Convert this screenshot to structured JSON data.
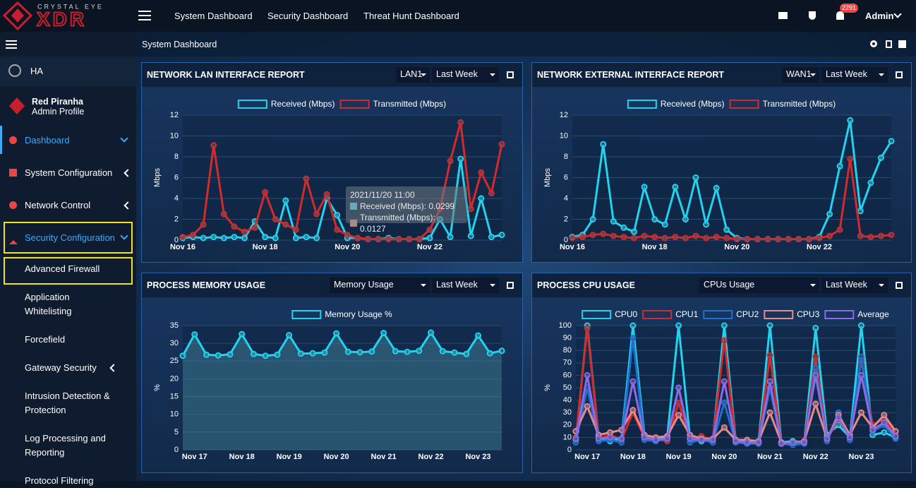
{
  "header": {
    "logo_top": "CRYSTAL EYE",
    "logo_main": "XDR",
    "nav": [
      "System Dashboard",
      "Security Dashboard",
      "Threat Hunt Dashboard"
    ],
    "notification_count": 2291,
    "user": "Admin"
  },
  "sidebar": {
    "ha": "HA",
    "profile_name": "Red Piranha",
    "profile_role": "Admin Profile",
    "menu": [
      "Dashboard",
      "System Configuration",
      "Network Control",
      "Security Configuration"
    ],
    "submenu": [
      "Advanced Firewall",
      "Application Whitelisting",
      "Forcefield",
      "Gateway Security",
      "Intrusion Detection & Protection",
      "Log Processing and Reporting",
      "Protocol Filtering"
    ]
  },
  "page_title": "System Dashboard",
  "panel_controls": [
    [
      "LAN1",
      "Last Week"
    ],
    [
      "WAN1",
      "Last Week"
    ],
    [
      "Memory Usage",
      "Last Week"
    ],
    [
      "CPUs Usage",
      "Last Week"
    ]
  ],
  "tooltip": {
    "time": "2021/11/20 11:00",
    "lines": [
      "Received (Mbps): 0.0299",
      "Transmitted (Mbps): 0.0127"
    ]
  },
  "chart_data": [
    {
      "type": "line",
      "title": "NETWORK LAN INTERFACE REPORT",
      "ylabel": "Mbps",
      "categories": [
        "Nov 16",
        null,
        null,
        null,
        null,
        null,
        null,
        null,
        "Nov 18",
        null,
        null,
        null,
        null,
        null,
        null,
        null,
        "Nov 20",
        null,
        null,
        null,
        null,
        null,
        null,
        null,
        "Nov 22",
        null,
        null,
        null,
        null,
        null,
        null,
        null
      ],
      "series": [
        {
          "name": "Received (Mbps)",
          "color": "#22d3ee",
          "values": [
            0.2,
            0.3,
            0.2,
            0.3,
            0.2,
            0.3,
            0.2,
            1.8,
            0.3,
            0.2,
            3.8,
            0.2,
            0.3,
            0.2,
            4.0,
            2.4,
            0.2,
            0.2,
            0.1,
            0.1,
            0.2,
            0.1,
            0.1,
            0.1,
            0.2,
            2.0,
            0.3,
            7.8,
            0.4,
            4.0,
            0.3,
            0.5
          ]
        },
        {
          "name": "Transmitted (Mbps)",
          "color": "#d42a2a",
          "values": [
            0.3,
            0.5,
            1.5,
            9.1,
            2.5,
            1.3,
            0.8,
            1.2,
            4.6,
            2.0,
            1.5,
            1.0,
            5.9,
            2.5,
            4.4,
            1.0,
            0.5,
            0.2,
            0.1,
            0.1,
            0.1,
            0.1,
            0.1,
            0.1,
            1.0,
            3.0,
            7.6,
            11.3,
            3.0,
            6.5,
            4.5,
            9.2
          ]
        }
      ],
      "ylim": [
        0,
        12
      ],
      "yticks": [
        0,
        2,
        4,
        6,
        8,
        10,
        12
      ],
      "grid": true,
      "legend": "top"
    },
    {
      "type": "line",
      "title": "NETWORK EXTERNAL INTERFACE REPORT",
      "ylabel": "Mbps",
      "categories": [
        "Nov 16",
        null,
        null,
        null,
        null,
        null,
        null,
        null,
        "Nov 18",
        null,
        null,
        null,
        null,
        null,
        null,
        null,
        "Nov 20",
        null,
        null,
        null,
        null,
        null,
        null,
        null,
        "Nov 22",
        null,
        null,
        null,
        null,
        null,
        null,
        null
      ],
      "series": [
        {
          "name": "Received (Mbps)",
          "color": "#22d3ee",
          "values": [
            0.3,
            0.5,
            2.0,
            9.2,
            1.8,
            1.2,
            0.8,
            5.1,
            2.0,
            1.5,
            5.1,
            2.0,
            6.0,
            1.5,
            5.0,
            1.0,
            0.2,
            0.1,
            0.1,
            0.1,
            0.1,
            0.1,
            0.1,
            0.1,
            0.3,
            2.5,
            7.1,
            11.5,
            2.8,
            5.5,
            7.9,
            9.5
          ]
        },
        {
          "name": "Transmitted (Mbps)",
          "color": "#d42a2a",
          "values": [
            0.2,
            0.3,
            0.5,
            0.6,
            0.4,
            0.3,
            0.2,
            0.4,
            0.3,
            0.2,
            0.3,
            0.2,
            0.4,
            0.2,
            0.3,
            0.2,
            0.1,
            0.1,
            0.1,
            0.1,
            0.1,
            0.1,
            0.1,
            0.1,
            0.2,
            0.4,
            1.0,
            7.8,
            0.4,
            0.3,
            0.4,
            0.5
          ]
        }
      ],
      "ylim": [
        0,
        12
      ],
      "yticks": [
        0,
        2,
        4,
        6,
        8,
        10,
        12
      ],
      "grid": true,
      "legend": "top"
    },
    {
      "type": "area",
      "title": "PROCESS MEMORY USAGE",
      "ylabel": "%",
      "categories": [
        null,
        "Nov 17",
        null,
        null,
        null,
        "Nov 18",
        null,
        null,
        null,
        "Nov 19",
        null,
        null,
        null,
        "Nov 20",
        null,
        null,
        null,
        "Nov 21",
        null,
        null,
        null,
        "Nov 22",
        null,
        null,
        null,
        "Nov 23",
        null,
        null
      ],
      "series": [
        {
          "name": "Memory Usage %",
          "color": "#22d3ee",
          "values": [
            26.5,
            32.5,
            26.8,
            26.6,
            26.9,
            32.6,
            27.0,
            26.5,
            26.8,
            32.3,
            27.1,
            27.2,
            27.4,
            32.8,
            27.6,
            27.5,
            27.7,
            32.9,
            27.8,
            27.6,
            27.9,
            33.0,
            27.8,
            27.4,
            27.0,
            32.2,
            27.2,
            27.9
          ]
        }
      ],
      "ylim": [
        0,
        35
      ],
      "yticks": [
        0,
        5,
        10,
        15,
        20,
        25,
        30,
        35
      ],
      "grid": true,
      "legend": "top"
    },
    {
      "type": "line",
      "title": "PROCESS CPU USAGE",
      "ylabel": "%",
      "categories": [
        null,
        "Nov 17",
        null,
        null,
        null,
        "Nov 18",
        null,
        null,
        null,
        "Nov 19",
        null,
        null,
        null,
        "Nov 20",
        null,
        null,
        null,
        "Nov 21",
        null,
        null,
        null,
        "Nov 22",
        null,
        null,
        null,
        "Nov 23",
        null,
        null,
        null
      ],
      "series": [
        {
          "name": "CPU0",
          "color": "#22d3ee",
          "values": [
            8,
            100,
            10,
            7,
            9,
            100,
            12,
            8,
            10,
            100,
            9,
            7,
            8,
            100,
            8,
            7,
            6,
            100,
            6,
            7,
            6,
            98,
            12,
            20,
            10,
            100,
            12,
            14,
            10
          ]
        },
        {
          "name": "CPU1",
          "color": "#d42a2a",
          "values": [
            10,
            98,
            9,
            12,
            8,
            30,
            10,
            9,
            7,
            38,
            9,
            11,
            8,
            88,
            7,
            6,
            5,
            76,
            5,
            6,
            6,
            75,
            8,
            25,
            10,
            72,
            20,
            25,
            12
          ]
        },
        {
          "name": "CPU2",
          "color": "#1f6fd0",
          "values": [
            6,
            50,
            7,
            8,
            6,
            90,
            8,
            7,
            9,
            50,
            6,
            8,
            6,
            38,
            6,
            5,
            5,
            50,
            5,
            4,
            5,
            66,
            7,
            30,
            8,
            75,
            15,
            20,
            9
          ]
        },
        {
          "name": "CPU3",
          "color": "#e88a8a",
          "values": [
            15,
            35,
            12,
            14,
            16,
            32,
            12,
            10,
            11,
            28,
            12,
            9,
            9,
            18,
            8,
            8,
            7,
            30,
            6,
            6,
            7,
            37,
            9,
            28,
            12,
            30,
            18,
            28,
            15
          ]
        },
        {
          "name": "Average",
          "color": "#8b6be8",
          "values": [
            9,
            60,
            9,
            10,
            9,
            55,
            10,
            8,
            9,
            50,
            9,
            8,
            8,
            55,
            7,
            6,
            6,
            55,
            5,
            6,
            6,
            60,
            9,
            26,
            10,
            60,
            16,
            22,
            11
          ]
        }
      ],
      "ylim": [
        0,
        100
      ],
      "yticks": [
        0,
        10,
        20,
        30,
        40,
        50,
        60,
        70,
        80,
        90,
        100
      ],
      "grid": true,
      "legend": "top"
    }
  ]
}
